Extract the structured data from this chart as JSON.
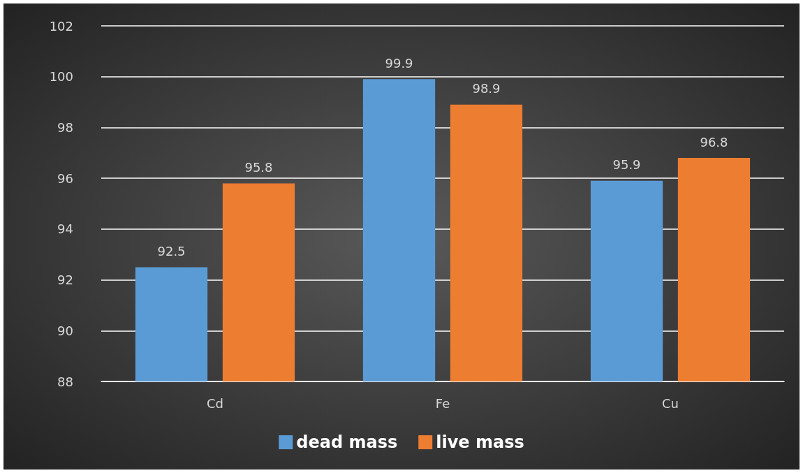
{
  "chart_data": {
    "type": "bar",
    "categories": [
      "Cd",
      "Fe",
      "Cu"
    ],
    "series": [
      {
        "name": "dead mass",
        "color": "#5b9bd5",
        "values": [
          92.5,
          99.9,
          95.9
        ]
      },
      {
        "name": "live mass",
        "color": "#ed7d31",
        "values": [
          95.8,
          98.9,
          96.8
        ]
      }
    ],
    "ylim": [
      88,
      102
    ],
    "yticks": [
      88,
      90,
      92,
      94,
      96,
      98,
      100,
      102
    ],
    "grid": "y",
    "legend": "bottom",
    "data_labels": true
  }
}
